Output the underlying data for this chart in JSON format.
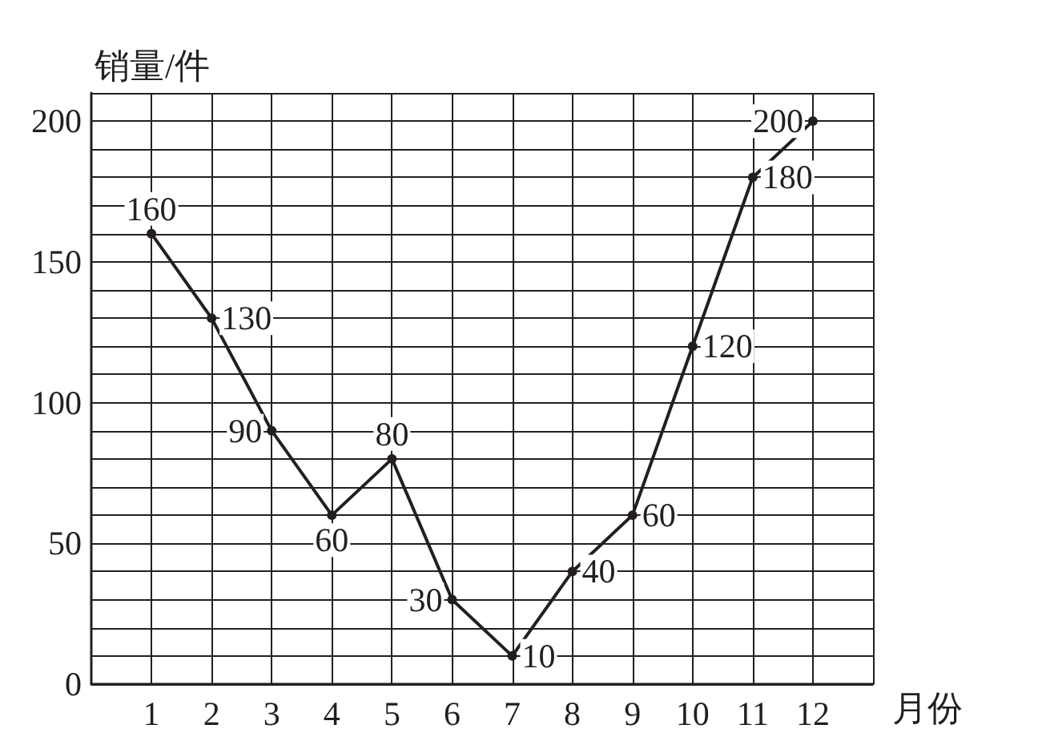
{
  "chart_data": {
    "type": "line",
    "xlabel": "月份",
    "ylabel": "销量/件",
    "x": [
      1,
      2,
      3,
      4,
      5,
      6,
      7,
      8,
      9,
      10,
      11,
      12
    ],
    "values": [
      160,
      130,
      90,
      60,
      80,
      30,
      10,
      40,
      60,
      120,
      180,
      200
    ],
    "color": "#231f20",
    "marker": "circle",
    "line_style": "solid",
    "data_labels": true,
    "grid": true,
    "xlim": [
      0,
      13
    ],
    "xticks": [
      1,
      2,
      3,
      4,
      5,
      6,
      7,
      8,
      9,
      10,
      11,
      12,
      {
        "value": 13,
        "label": null
      }
    ],
    "ylim": [
      0,
      210
    ],
    "yticks": [
      0,
      {
        "value": 10,
        "label": null
      },
      {
        "value": 20,
        "label": null
      },
      {
        "value": 30,
        "label": null
      },
      {
        "value": 40,
        "label": null
      },
      50,
      {
        "value": 60,
        "label": null
      },
      {
        "value": 70,
        "label": null
      },
      {
        "value": 80,
        "label": null
      },
      {
        "value": 90,
        "label": null
      },
      100,
      {
        "value": 110,
        "label": null
      },
      {
        "value": 120,
        "label": null
      },
      {
        "value": 130,
        "label": null
      },
      {
        "value": 140,
        "label": null
      },
      150,
      {
        "value": 160,
        "label": null
      },
      {
        "value": 170,
        "label": null
      },
      {
        "value": 180,
        "label": null
      },
      {
        "value": 190,
        "label": null
      },
      200,
      {
        "value": 210,
        "label": null
      }
    ]
  }
}
